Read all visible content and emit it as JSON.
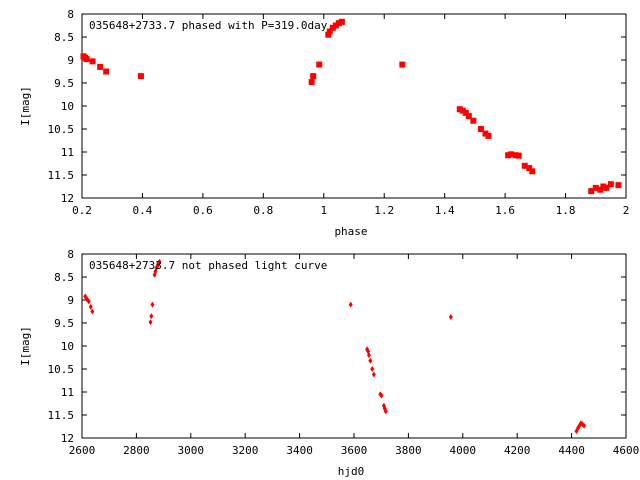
{
  "chart_data": [
    {
      "type": "scatter",
      "title": "035648+2733.7 phased with P=319.0day",
      "xlabel": "phase",
      "ylabel": "I[mag]",
      "xlim": [
        0.2,
        2.0
      ],
      "ylim": [
        12,
        8
      ],
      "y_inverted": true,
      "xticks": [
        "0.2",
        "0.4",
        "0.6",
        "0.8",
        "1",
        "1.2",
        "1.4",
        "1.6",
        "1.8",
        "2"
      ],
      "yticks": [
        "8",
        "8.5",
        "9",
        "9.5",
        "10",
        "10.5",
        "11",
        "11.5",
        "12"
      ],
      "grid": false,
      "marker": "filled-square",
      "color": "#ff0000",
      "x": [
        0.205,
        0.21,
        0.215,
        0.235,
        0.26,
        0.28,
        0.395,
        0.96,
        0.965,
        0.985,
        1.015,
        1.02,
        1.03,
        1.04,
        1.05,
        1.06,
        1.26,
        1.45,
        1.46,
        1.47,
        1.48,
        1.495,
        1.52,
        1.535,
        1.545,
        1.61,
        1.62,
        1.635,
        1.645,
        1.665,
        1.68,
        1.69,
        1.885,
        1.9,
        1.915,
        1.925,
        1.935,
        1.95,
        1.975
      ],
      "y": [
        8.92,
        8.95,
        8.98,
        9.03,
        9.15,
        9.25,
        9.35,
        9.48,
        9.35,
        9.1,
        8.45,
        8.38,
        8.3,
        8.25,
        8.2,
        8.17,
        9.1,
        10.07,
        10.1,
        10.15,
        10.22,
        10.32,
        10.5,
        10.6,
        10.65,
        11.07,
        11.05,
        11.07,
        11.08,
        11.3,
        11.35,
        11.42,
        11.85,
        11.78,
        11.82,
        11.75,
        11.78,
        11.7,
        11.72
      ]
    },
    {
      "type": "scatter",
      "title": "035648+2733.7 not phased light curve",
      "xlabel": "hjd0",
      "ylabel": "I[mag]",
      "xlim": [
        2600,
        4600
      ],
      "ylim": [
        12,
        8
      ],
      "y_inverted": true,
      "xticks": [
        "2600",
        "2800",
        "3000",
        "3200",
        "3400",
        "3600",
        "3800",
        "4000",
        "4200",
        "4400",
        "4600"
      ],
      "yticks": [
        "8",
        "8.5",
        "9",
        "9.5",
        "10",
        "10.5",
        "11",
        "11.5",
        "12"
      ],
      "grid": false,
      "marker": "small-diamond",
      "color": "#ff0000",
      "x": [
        2612,
        2615,
        2618,
        2625,
        2632,
        2638,
        2852,
        2855,
        2859,
        2867,
        2870,
        2874,
        2878,
        2881,
        2885,
        3588,
        3648,
        3652,
        3655,
        3660,
        3667,
        3673,
        3697,
        3701,
        3710,
        3713,
        3717,
        3956,
        4418,
        4424,
        4430,
        4434,
        4440,
        4446
      ],
      "y": [
        8.92,
        8.95,
        8.98,
        9.03,
        9.15,
        9.25,
        9.48,
        9.35,
        9.1,
        8.45,
        8.38,
        8.3,
        8.25,
        8.2,
        8.17,
        9.1,
        10.07,
        10.12,
        10.2,
        10.32,
        10.5,
        10.62,
        11.05,
        11.08,
        11.3,
        11.36,
        11.42,
        9.37,
        11.85,
        11.78,
        11.72,
        11.68,
        11.7,
        11.73
      ]
    }
  ]
}
